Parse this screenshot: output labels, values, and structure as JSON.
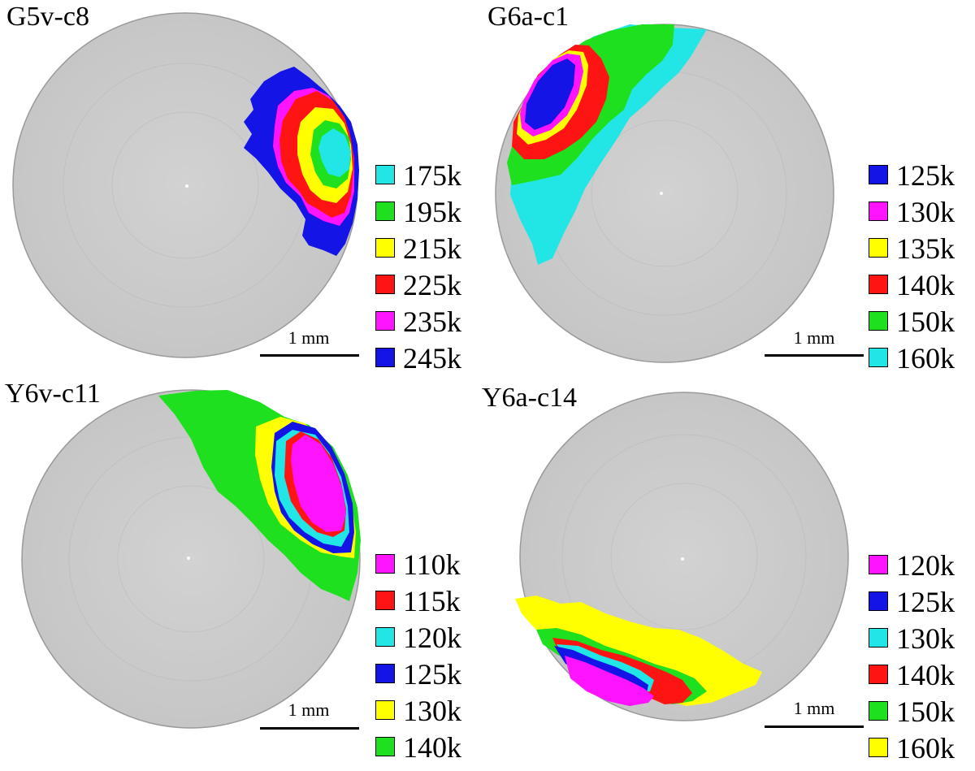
{
  "panels": [
    {
      "title": "G5v-c8",
      "scale_label": "1 mm",
      "legend": [
        {
          "label": "175k",
          "color": "#22e6e6"
        },
        {
          "label": "195k",
          "color": "#1ee01e"
        },
        {
          "label": "215k",
          "color": "#ffff00"
        },
        {
          "label": "225k",
          "color": "#ff1414"
        },
        {
          "label": "235k",
          "color": "#ff14ff"
        },
        {
          "label": "245k",
          "color": "#1414e6"
        }
      ]
    },
    {
      "title": "G6a-c1",
      "scale_label": "1 mm",
      "legend": [
        {
          "label": "125k",
          "color": "#1414e6"
        },
        {
          "label": "130k",
          "color": "#ff14ff"
        },
        {
          "label": "135k",
          "color": "#ffff00"
        },
        {
          "label": "140k",
          "color": "#ff1414"
        },
        {
          "label": "150k",
          "color": "#1ee01e"
        },
        {
          "label": "160k",
          "color": "#22e6e6"
        }
      ]
    },
    {
      "title": "Y6v-c11",
      "scale_label": "1 mm",
      "legend": [
        {
          "label": "110k",
          "color": "#ff14ff"
        },
        {
          "label": "115k",
          "color": "#ff1414"
        },
        {
          "label": "120k",
          "color": "#22e6e6"
        },
        {
          "label": "125k",
          "color": "#1414e6"
        },
        {
          "label": "130k",
          "color": "#ffff00"
        },
        {
          "label": "140k",
          "color": "#1ee01e"
        }
      ]
    },
    {
      "title": "Y6a-c14",
      "scale_label": "1 mm",
      "legend": [
        {
          "label": "120k",
          "color": "#ff14ff"
        },
        {
          "label": "125k",
          "color": "#1414e6"
        },
        {
          "label": "130k",
          "color": "#22e6e6"
        },
        {
          "label": "140k",
          "color": "#ff1414"
        },
        {
          "label": "150k",
          "color": "#1ee01e"
        },
        {
          "label": "160k",
          "color": "#ffff00"
        }
      ]
    }
  ]
}
